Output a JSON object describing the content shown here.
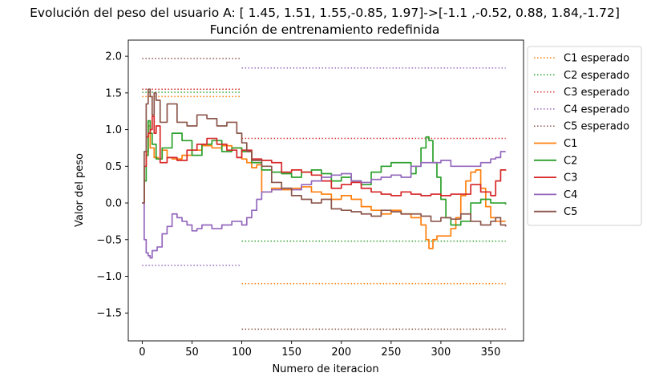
{
  "chart_data": {
    "type": "line",
    "title": "Evolución del peso del usuario A: [ 1.45, 1.51, 1.55,-0.85, 1.97]->[-1.1 ,-0.52, 0.88, 1.84,-1.72]",
    "subtitle": "Función de entrenamiento redefinida",
    "xlabel": "Numero de iteracion",
    "ylabel": "Valor del peso",
    "xlim": [
      -14,
      383
    ],
    "ylim": [
      -1.88,
      2.22
    ],
    "xticks": [
      0,
      50,
      100,
      150,
      200,
      250,
      300,
      350
    ],
    "xtick_labels": [
      "0",
      "50",
      "100",
      "150",
      "200",
      "250",
      "300",
      "350"
    ],
    "yticks": [
      2.0,
      1.5,
      1.0,
      0.5,
      0.0,
      -0.5,
      -1.0,
      -1.5
    ],
    "ytick_labels": [
      "2.0",
      "1.5",
      "1.0",
      "0.5",
      "0.0",
      "−0.5",
      "−1.0",
      "−1.5"
    ],
    "grid": false,
    "legend_position": "outside-right-top",
    "colors": {
      "C1": "#ff7f0e",
      "C2": "#2ca02c",
      "C3": "#d62728",
      "C4": "#9467bd",
      "C5": "#8c564b"
    },
    "expected": [
      {
        "name": "C1 esperado",
        "color": "#ff7f0e",
        "segments": [
          {
            "x": [
              0,
              99
            ],
            "y": 1.45
          },
          {
            "x": [
              100,
              365
            ],
            "y": -1.1
          }
        ]
      },
      {
        "name": "C2 esperado",
        "color": "#2ca02c",
        "segments": [
          {
            "x": [
              0,
              99
            ],
            "y": 1.51
          },
          {
            "x": [
              100,
              365
            ],
            "y": -0.52
          }
        ]
      },
      {
        "name": "C3 esperado",
        "color": "#d62728",
        "segments": [
          {
            "x": [
              0,
              99
            ],
            "y": 1.55
          },
          {
            "x": [
              100,
              365
            ],
            "y": 0.88
          }
        ]
      },
      {
        "name": "C4 esperado",
        "color": "#9467bd",
        "segments": [
          {
            "x": [
              0,
              99
            ],
            "y": -0.85
          },
          {
            "x": [
              100,
              365
            ],
            "y": 1.84
          }
        ]
      },
      {
        "name": "C5 esperado",
        "color": "#8c564b",
        "segments": [
          {
            "x": [
              0,
              99
            ],
            "y": 1.97
          },
          {
            "x": [
              100,
              365
            ],
            "y": -1.72
          }
        ]
      }
    ],
    "series": [
      {
        "name": "C1",
        "color": "#ff7f0e",
        "x": [
          0,
          2,
          4,
          6,
          8,
          12,
          16,
          20,
          25,
          30,
          40,
          50,
          60,
          70,
          80,
          90,
          100,
          105,
          110,
          115,
          120,
          130,
          140,
          150,
          160,
          170,
          180,
          190,
          200,
          210,
          220,
          230,
          240,
          250,
          260,
          270,
          280,
          285,
          288,
          292,
          296,
          300,
          305,
          310,
          315,
          320,
          325,
          330,
          335,
          340,
          345,
          350,
          355,
          360,
          365
        ],
        "y": [
          0.0,
          0.5,
          0.7,
          1.05,
          0.75,
          0.62,
          0.6,
          0.72,
          0.62,
          0.6,
          0.65,
          0.72,
          0.78,
          0.75,
          0.78,
          0.75,
          0.6,
          0.55,
          0.48,
          0.52,
          0.15,
          0.2,
          0.18,
          0.2,
          0.22,
          0.15,
          0.12,
          0.05,
          0.1,
          0.05,
          -0.05,
          -0.1,
          -0.15,
          -0.1,
          -0.15,
          -0.2,
          -0.3,
          -0.5,
          -0.62,
          -0.5,
          -0.45,
          -0.45,
          -0.45,
          -0.35,
          -0.2,
          0.1,
          0.3,
          0.42,
          0.45,
          0.2,
          -0.05,
          -0.2,
          -0.25,
          -0.25,
          -0.25
        ]
      },
      {
        "name": "C2",
        "color": "#2ca02c",
        "x": [
          0,
          2,
          4,
          6,
          8,
          10,
          14,
          20,
          30,
          40,
          50,
          60,
          70,
          80,
          90,
          100,
          110,
          120,
          130,
          140,
          150,
          160,
          170,
          180,
          190,
          200,
          210,
          220,
          230,
          240,
          250,
          260,
          270,
          275,
          280,
          285,
          288,
          292,
          296,
          300,
          305,
          310,
          320,
          330,
          340,
          350,
          355,
          360,
          365
        ],
        "y": [
          0.0,
          0.3,
          0.65,
          1.12,
          0.95,
          0.8,
          0.6,
          0.75,
          0.95,
          0.85,
          0.65,
          0.8,
          0.85,
          0.7,
          0.75,
          0.7,
          0.55,
          0.45,
          0.42,
          0.4,
          0.35,
          0.42,
          0.45,
          0.4,
          0.3,
          0.35,
          0.3,
          0.25,
          0.42,
          0.5,
          0.55,
          0.55,
          0.4,
          0.5,
          0.75,
          0.9,
          0.85,
          0.55,
          0.35,
          0.05,
          -0.2,
          -0.3,
          -0.25,
          0.0,
          0.05,
          0.0,
          0.0,
          0.0,
          -0.02
        ]
      },
      {
        "name": "C3",
        "color": "#d62728",
        "x": [
          0,
          2,
          4,
          6,
          8,
          10,
          12,
          14,
          18,
          25,
          35,
          45,
          55,
          65,
          75,
          85,
          95,
          100,
          110,
          120,
          130,
          140,
          150,
          160,
          170,
          180,
          190,
          200,
          210,
          220,
          230,
          240,
          250,
          260,
          270,
          280,
          290,
          300,
          310,
          320,
          330,
          340,
          350,
          355,
          360,
          365
        ],
        "y": [
          0.0,
          0.5,
          0.9,
          0.95,
          1.0,
          1.18,
          0.95,
          1.05,
          0.55,
          0.62,
          0.58,
          0.72,
          0.8,
          0.88,
          0.8,
          0.72,
          0.62,
          0.72,
          0.6,
          0.58,
          0.55,
          0.42,
          0.45,
          0.42,
          0.38,
          0.3,
          0.2,
          0.25,
          0.28,
          0.2,
          0.15,
          0.12,
          0.1,
          0.15,
          0.12,
          0.1,
          0.12,
          0.1,
          0.12,
          0.12,
          0.25,
          0.15,
          0.1,
          0.3,
          0.45,
          0.44
        ]
      },
      {
        "name": "C4",
        "color": "#9467bd",
        "x": [
          0,
          2,
          4,
          6,
          8,
          10,
          15,
          20,
          25,
          30,
          35,
          40,
          45,
          50,
          55,
          60,
          70,
          80,
          90,
          100,
          105,
          110,
          115,
          120,
          130,
          140,
          150,
          160,
          170,
          180,
          190,
          200,
          210,
          220,
          230,
          240,
          250,
          260,
          270,
          280,
          290,
          300,
          310,
          320,
          330,
          340,
          350,
          355,
          360,
          365
        ],
        "y": [
          0.0,
          -0.5,
          -0.68,
          -0.72,
          -0.75,
          -0.65,
          -0.6,
          -0.42,
          -0.32,
          -0.15,
          -0.2,
          -0.25,
          -0.3,
          -0.38,
          -0.35,
          -0.3,
          -0.35,
          -0.3,
          -0.25,
          -0.3,
          -0.2,
          -0.1,
          0.05,
          0.15,
          0.18,
          0.2,
          0.18,
          0.25,
          0.3,
          0.35,
          0.38,
          0.4,
          0.3,
          0.28,
          0.32,
          0.35,
          0.38,
          0.35,
          0.5,
          0.55,
          0.55,
          0.58,
          0.5,
          0.5,
          0.5,
          0.55,
          0.6,
          0.62,
          0.7,
          0.7
        ]
      },
      {
        "name": "C5",
        "color": "#8c564b",
        "x": [
          0,
          2,
          4,
          6,
          8,
          10,
          12,
          14,
          18,
          25,
          35,
          45,
          55,
          65,
          75,
          85,
          95,
          100,
          105,
          110,
          120,
          130,
          140,
          150,
          160,
          170,
          180,
          190,
          200,
          210,
          220,
          230,
          240,
          250,
          260,
          270,
          280,
          290,
          300,
          310,
          320,
          330,
          340,
          350,
          355,
          360,
          365
        ],
        "y": [
          0.0,
          0.7,
          1.35,
          1.55,
          1.45,
          1.2,
          1.5,
          1.4,
          1.1,
          1.35,
          1.1,
          1.05,
          1.2,
          1.15,
          1.05,
          1.1,
          0.95,
          0.82,
          0.7,
          0.58,
          0.5,
          0.28,
          0.2,
          0.1,
          0.05,
          0.0,
          0.05,
          -0.08,
          -0.1,
          -0.12,
          -0.15,
          -0.18,
          -0.1,
          -0.12,
          -0.15,
          -0.15,
          -0.18,
          -0.25,
          -0.2,
          -0.22,
          -0.15,
          -0.25,
          -0.3,
          -0.25,
          -0.2,
          -0.3,
          -0.32
        ]
      }
    ]
  }
}
